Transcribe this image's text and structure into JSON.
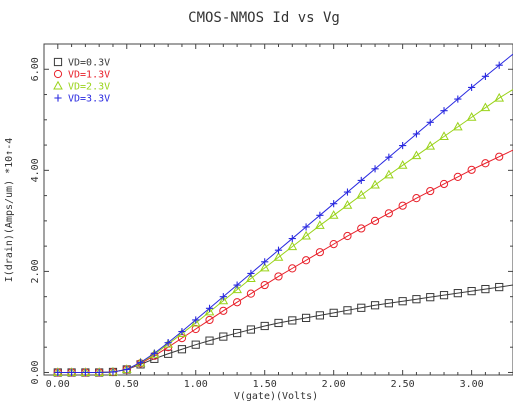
{
  "chart_data": {
    "type": "line",
    "title": "CMOS-NMOS Id vs Vg",
    "xlabel": "V(gate)(Volts)",
    "ylabel": "I(drain)(Amps/um) *10↑-4",
    "xlim": [
      -0.1,
      3.3
    ],
    "ylim": [
      -0.05,
      6.5
    ],
    "xticks": [
      0.0,
      0.5,
      1.0,
      1.5,
      2.0,
      2.5,
      3.0
    ],
    "xtick_labels": [
      "0.00",
      "0.50",
      "1.00",
      "1.50",
      "2.00",
      "2.50",
      "3.00"
    ],
    "yticks": [
      0.0,
      2.0,
      4.0,
      6.0
    ],
    "ytick_labels": [
      "0.00",
      "2.00",
      "4.00",
      "6.00"
    ],
    "grid": false,
    "legend_position": "top-left",
    "series": [
      {
        "name": "VD=0.3V",
        "marker": "square",
        "color": "#3a3a3a",
        "x": [
          0.0,
          0.1,
          0.2,
          0.3,
          0.4,
          0.5,
          0.6,
          0.7,
          0.8,
          0.9,
          1.0,
          1.1,
          1.2,
          1.3,
          1.4,
          1.5,
          1.6,
          1.7,
          1.8,
          1.9,
          2.0,
          2.1,
          2.2,
          2.3,
          2.4,
          2.5,
          2.6,
          2.7,
          2.8,
          2.9,
          3.0,
          3.1,
          3.2,
          3.3
        ],
        "y": [
          0.0,
          0.0,
          0.0,
          0.0,
          0.01,
          0.06,
          0.16,
          0.27,
          0.37,
          0.46,
          0.55,
          0.63,
          0.71,
          0.78,
          0.85,
          0.92,
          0.98,
          1.03,
          1.08,
          1.13,
          1.18,
          1.23,
          1.28,
          1.33,
          1.37,
          1.41,
          1.45,
          1.49,
          1.53,
          1.57,
          1.61,
          1.65,
          1.69,
          1.73
        ]
      },
      {
        "name": "VD=1.3V",
        "marker": "circle",
        "color": "#e8202a",
        "x": [
          0.0,
          0.1,
          0.2,
          0.3,
          0.4,
          0.5,
          0.6,
          0.7,
          0.8,
          0.9,
          1.0,
          1.1,
          1.2,
          1.3,
          1.4,
          1.5,
          1.6,
          1.7,
          1.8,
          1.9,
          2.0,
          2.1,
          2.2,
          2.3,
          2.4,
          2.5,
          2.6,
          2.7,
          2.8,
          2.9,
          3.0,
          3.1,
          3.2,
          3.3
        ],
        "y": [
          0.0,
          0.0,
          0.0,
          0.0,
          0.01,
          0.06,
          0.18,
          0.33,
          0.5,
          0.68,
          0.86,
          1.04,
          1.22,
          1.39,
          1.56,
          1.73,
          1.9,
          2.06,
          2.22,
          2.38,
          2.54,
          2.7,
          2.85,
          3.0,
          3.15,
          3.3,
          3.45,
          3.59,
          3.73,
          3.87,
          4.01,
          4.14,
          4.27,
          4.4
        ]
      },
      {
        "name": "VD=2.3V",
        "marker": "triangle",
        "color": "#9ad31a",
        "x": [
          0.0,
          0.1,
          0.2,
          0.3,
          0.4,
          0.5,
          0.6,
          0.7,
          0.8,
          0.9,
          1.0,
          1.1,
          1.2,
          1.3,
          1.4,
          1.5,
          1.6,
          1.7,
          1.8,
          1.9,
          2.0,
          2.1,
          2.2,
          2.3,
          2.4,
          2.5,
          2.6,
          2.7,
          2.8,
          2.9,
          3.0,
          3.1,
          3.2,
          3.3
        ],
        "y": [
          0.0,
          0.0,
          0.0,
          0.0,
          0.01,
          0.06,
          0.19,
          0.36,
          0.56,
          0.77,
          0.98,
          1.2,
          1.42,
          1.64,
          1.86,
          2.07,
          2.28,
          2.49,
          2.7,
          2.91,
          3.11,
          3.31,
          3.51,
          3.71,
          3.91,
          4.1,
          4.29,
          4.48,
          4.67,
          4.86,
          5.05,
          5.24,
          5.43,
          5.6
        ]
      },
      {
        "name": "VD=3.3V",
        "marker": "plus",
        "color": "#2a2ae0",
        "x": [
          0.0,
          0.1,
          0.2,
          0.3,
          0.4,
          0.5,
          0.6,
          0.7,
          0.8,
          0.9,
          1.0,
          1.1,
          1.2,
          1.3,
          1.4,
          1.5,
          1.6,
          1.7,
          1.8,
          1.9,
          2.0,
          2.1,
          2.2,
          2.3,
          2.4,
          2.5,
          2.6,
          2.7,
          2.8,
          2.9,
          3.0,
          3.1,
          3.2,
          3.3
        ],
        "y": [
          0.0,
          0.0,
          0.0,
          0.0,
          0.01,
          0.06,
          0.2,
          0.38,
          0.59,
          0.81,
          1.04,
          1.27,
          1.5,
          1.73,
          1.96,
          2.19,
          2.42,
          2.65,
          2.88,
          3.11,
          3.34,
          3.57,
          3.8,
          4.03,
          4.26,
          4.49,
          4.72,
          4.95,
          5.18,
          5.41,
          5.64,
          5.86,
          6.08,
          6.3
        ]
      }
    ]
  }
}
